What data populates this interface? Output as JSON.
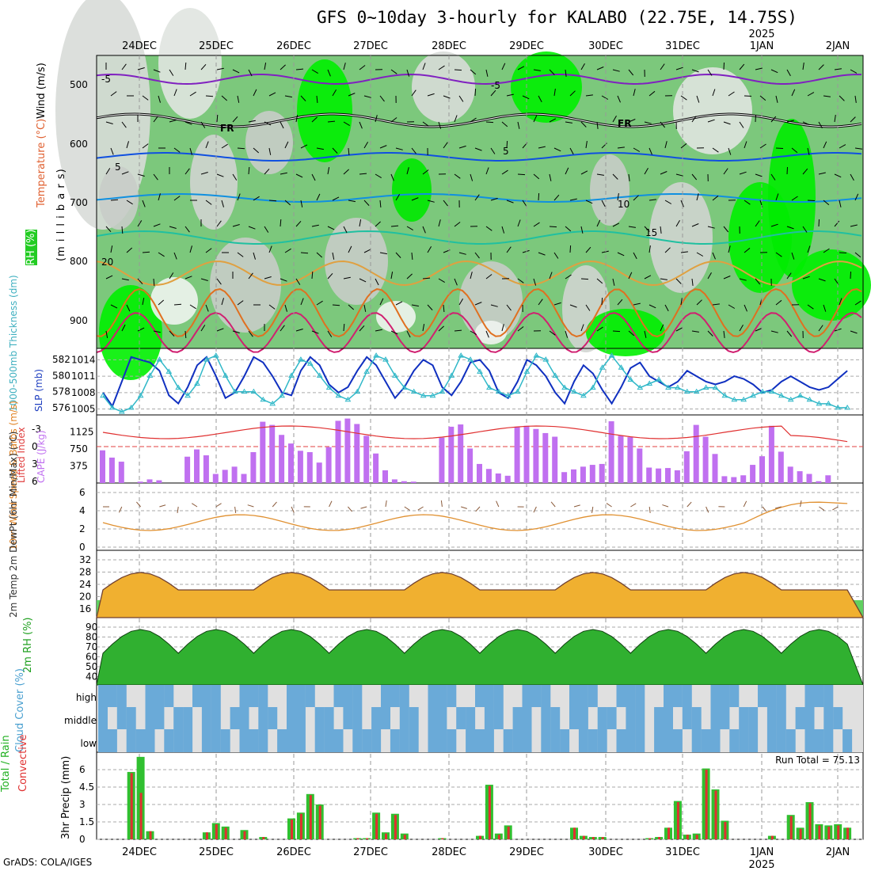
{
  "title": "GFS 0~10day 3-hourly for KALABO (22.75E, 14.75S)",
  "footer": "GrADS: COLA/IGES",
  "dates": [
    "24DEC",
    "25DEC",
    "26DEC",
    "27DEC",
    "28DEC",
    "29DEC",
    "30DEC",
    "31DEC",
    "1JAN",
    "2JAN"
  ],
  "year_label": "2025",
  "colors": {
    "rh_green": "#00e000",
    "rh_mid": "#74c874",
    "grey": "#c8d0c8",
    "cape": "#c070f0",
    "cloud": "#6aaad8"
  },
  "panels": {
    "upper": {
      "ylabel_wind": "Wind (m/s)",
      "ylabel_temp": "Temperature (°C)",
      "ylabel_rh": "RH (%)",
      "ylabel_mb": "(m i l l i b a r s)",
      "ticks": [
        "500",
        "600",
        "700",
        "800",
        "900"
      ]
    },
    "slp": {
      "ylabel_left": "1000-500mb Thickness (dm)",
      "ylabel_right": "SLP (mb)",
      "ticks_left": [
        "582",
        "580",
        "578",
        "576"
      ],
      "ticks_right": [
        "1014",
        "1011",
        "1008",
        "1005"
      ]
    },
    "cape": {
      "ylabel_left": "Lifted Index",
      "ylabel_right": "CAPE (J/kg)",
      "ticks_left": [
        "-3",
        "0",
        "3",
        "6"
      ],
      "ticks_right": [
        "1125",
        "750",
        "375"
      ]
    },
    "wind10": {
      "ylabel": "10m Wind Speed & Barbs (m/s)",
      "ticks": [
        "6",
        "4",
        "2",
        "0"
      ]
    },
    "temp": {
      "ylabel": "2m Temp 2m DewPt (6hr Min/Max) (°C)",
      "ticks": [
        "32",
        "28",
        "24",
        "20",
        "16"
      ]
    },
    "rh": {
      "ylabel": "2m RH (%)",
      "ticks": [
        "90",
        "80",
        "70",
        "60",
        "50",
        "40"
      ]
    },
    "cloud": {
      "ylabel": "Cloud Cover (%)",
      "levels": [
        "high",
        "middle",
        "low"
      ]
    },
    "precip": {
      "ylabel_total": "Total / Rain",
      "ylabel_conv": "Convective",
      "ylabel": "3hr Precip (mm)",
      "ticks": [
        "6",
        "4.5",
        "3",
        "1.5",
        "0"
      ],
      "run_total": "Run Total = 75.13"
    }
  },
  "chart_data": [
    {
      "type": "line",
      "title": "SLP (mb)",
      "x": [
        0,
        1,
        2,
        3,
        4,
        5,
        6,
        7,
        8,
        9,
        10,
        11,
        12,
        13,
        14,
        15,
        16,
        17,
        18,
        19,
        20,
        21,
        22,
        23,
        24,
        25,
        26,
        27,
        28,
        29,
        30,
        31,
        32,
        33,
        34,
        35,
        36,
        37,
        38,
        39,
        40,
        41,
        42,
        43,
        44,
        45,
        46,
        47,
        48,
        49,
        50,
        51,
        52,
        53,
        54,
        55,
        56,
        57,
        58,
        59,
        60,
        61,
        62,
        63,
        64,
        65,
        66,
        67,
        68,
        69,
        70,
        71,
        72,
        73,
        74,
        75,
        76,
        77,
        78,
        79,
        80
      ],
      "series": [
        {
          "name": "SLP",
          "values": [
            1008,
            1005.5,
            1010,
            1014.5,
            1014,
            1013.5,
            1012,
            1007.5,
            1006,
            1009,
            1013,
            1014.5,
            1011,
            1007,
            1008,
            1011,
            1014.5,
            1013.5,
            1011,
            1008,
            1007.5,
            1012,
            1014.5,
            1013,
            1009.5,
            1008,
            1009,
            1012,
            1014.5,
            1013,
            1010,
            1007,
            1009,
            1012,
            1014,
            1013,
            1009,
            1007.5,
            1010,
            1013.5,
            1014,
            1012,
            1008,
            1007,
            1010,
            1014,
            1013,
            1011,
            1008,
            1006,
            1010,
            1013,
            1011.5,
            1008.5,
            1006,
            1009,
            1012.5,
            1013.5,
            1011,
            1010,
            1009,
            1010,
            1012,
            1011,
            1010,
            1009.5,
            1010,
            1011,
            1010.5,
            1009.5,
            1008,
            1008.5,
            1010,
            1011,
            1010,
            1009,
            1008.5,
            1009,
            1010.5,
            1012,
            1012.5
          ]
        },
        {
          "name": "1000-500mb Thickness",
          "values": [
            577.5,
            576,
            575.5,
            576,
            577.5,
            580,
            582,
            580.5,
            578.5,
            577.5,
            579,
            582,
            582.5,
            580,
            578,
            578,
            578,
            577,
            576.5,
            577.5,
            580,
            582,
            581.5,
            580,
            578.5,
            577.5,
            577,
            578,
            580.5,
            582.5,
            582,
            580,
            578.5,
            578,
            577.5,
            577.5,
            578,
            580,
            582.5,
            582,
            580.5,
            578.5,
            578,
            577.5,
            578,
            580.5,
            582.5,
            582,
            580,
            578.5,
            578,
            577.5,
            578.5,
            581,
            582.5,
            581,
            579.5,
            578.5,
            579,
            579.5,
            578.5,
            578.5,
            578,
            578,
            578.5,
            578.5,
            577.5,
            577,
            577,
            577.5,
            578,
            578,
            577.5,
            577,
            577.5,
            577,
            576.5,
            576.5,
            576,
            576,
            576
          ]
        }
      ],
      "ylim": [
        575,
        583
      ]
    },
    {
      "type": "bar",
      "title": "CAPE (J/kg)",
      "categories_count": 80,
      "values": [
        720,
        560,
        470,
        0,
        30,
        80,
        60,
        0,
        0,
        580,
        740,
        610,
        200,
        290,
        360,
        200,
        680,
        1350,
        1280,
        1060,
        870,
        710,
        680,
        450,
        790,
        1370,
        1420,
        1300,
        1040,
        650,
        280,
        80,
        40,
        30,
        0,
        0,
        1000,
        1240,
        1290,
        760,
        420,
        310,
        210,
        160,
        1240,
        1260,
        1190,
        1100,
        1020,
        240,
        300,
        360,
        400,
        420,
        1360,
        1040,
        1010,
        760,
        340,
        320,
        330,
        280,
        700,
        1280,
        1020,
        640,
        150,
        130,
        170,
        400,
        590,
        1260,
        690,
        360,
        260,
        200,
        40,
        170,
        0,
        0,
        0
      ]
    },
    {
      "type": "bar",
      "title": "3hr Precip (mm)",
      "categories_count": 80,
      "series": [
        {
          "name": "Total",
          "values": [
            0,
            0,
            0,
            5.8,
            7.1,
            0.7,
            0,
            0,
            0,
            0,
            0,
            0.6,
            1.4,
            1.1,
            0,
            0.8,
            0,
            0.2,
            0,
            0,
            1.8,
            2.3,
            3.9,
            3.0,
            0,
            0,
            0,
            0.1,
            0.1,
            2.3,
            0.6,
            2.2,
            0.5,
            0,
            0,
            0,
            0.1,
            0,
            0,
            0,
            0.3,
            4.7,
            0.5,
            1.2,
            0,
            0,
            0,
            0,
            0,
            0,
            1.0,
            0.3,
            0.2,
            0.2,
            0,
            0,
            0,
            0,
            0.1,
            0.2,
            1.0,
            3.3,
            0.4,
            0.5,
            6.1,
            4.3,
            1.6,
            0,
            0,
            0,
            0,
            0.3,
            0,
            2.1,
            1.0,
            3.2,
            1.3,
            1.2,
            1.3,
            1.0
          ]
        },
        {
          "name": "Convective",
          "values": [
            0,
            0,
            0,
            5.7,
            4.0,
            0.7,
            0,
            0,
            0,
            0,
            0,
            0.6,
            1.3,
            1.0,
            0,
            0.7,
            0,
            0.2,
            0,
            0,
            1.7,
            2.2,
            3.8,
            2.9,
            0,
            0,
            0,
            0.1,
            0.1,
            2.2,
            0.5,
            2.1,
            0.4,
            0,
            0,
            0,
            0.1,
            0,
            0,
            0,
            0.3,
            4.6,
            0.4,
            1.1,
            0,
            0,
            0,
            0,
            0,
            0,
            1.0,
            0.3,
            0.2,
            0.2,
            0,
            0,
            0,
            0,
            0.1,
            0.2,
            1.0,
            3.2,
            0.4,
            0.4,
            6.0,
            4.2,
            1.5,
            0,
            0,
            0,
            0,
            0.3,
            0,
            2.0,
            0.9,
            3.1,
            1.2,
            1.1,
            1.2,
            1.0
          ]
        }
      ],
      "ylim": [
        0,
        7.5
      ]
    }
  ]
}
